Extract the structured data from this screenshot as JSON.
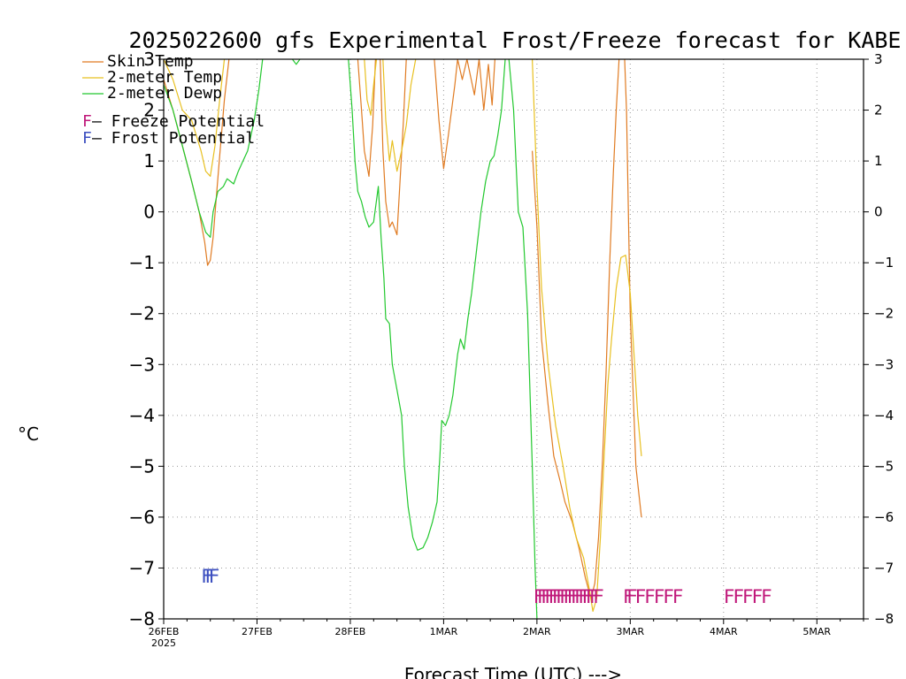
{
  "chart_data": {
    "type": "line",
    "title": "2025022600 gfs Experimental Frost/Freeze forecast for KABE",
    "xlabel": "Forecast Time (UTC) --->",
    "ylabel": "°C",
    "ylim": [
      -8,
      3
    ],
    "yticks": [
      -8,
      -7,
      -6,
      -5,
      -4,
      -3,
      -2,
      -1,
      0,
      1,
      2,
      3
    ],
    "xlim": [
      0,
      7.5
    ],
    "x_units": "days since 26FEB2025 00Z",
    "xticks": [
      {
        "x": 0,
        "label": "26FEB",
        "sublabel": "2025"
      },
      {
        "x": 1,
        "label": "27FEB"
      },
      {
        "x": 2,
        "label": "28FEB"
      },
      {
        "x": 3,
        "label": "1MAR"
      },
      {
        "x": 4,
        "label": "2MAR"
      },
      {
        "x": 5,
        "label": "3MAR"
      },
      {
        "x": 6,
        "label": "4MAR"
      },
      {
        "x": 7,
        "label": "5MAR"
      }
    ],
    "grid": true,
    "legend_position": "top-left",
    "legend_notes": [
      {
        "marker": "F",
        "text": " – Freeze Potential",
        "color": "#c0187a"
      },
      {
        "marker": "F",
        "text": " – Frost Potential",
        "color": "#3c4fc0"
      }
    ],
    "series": [
      {
        "name": "Skin Temp",
        "color": "#e07b22",
        "segments": [
          [
            [
              0,
              2.6
            ],
            [
              0.1,
              2.0
            ],
            [
              0.2,
              1.3
            ],
            [
              0.3,
              0.6
            ],
            [
              0.38,
              0.0
            ],
            [
              0.44,
              -0.6
            ],
            [
              0.47,
              -1.05
            ],
            [
              0.5,
              -0.95
            ],
            [
              0.53,
              -0.5
            ],
            [
              0.56,
              0.2
            ],
            [
              0.6,
              1.1
            ],
            [
              0.65,
              2.2
            ],
            [
              0.7,
              3.0
            ]
          ],
          [
            [
              2.08,
              3.0
            ],
            [
              2.12,
              2.0
            ],
            [
              2.15,
              1.2
            ],
            [
              2.2,
              0.7
            ],
            [
              2.24,
              1.7
            ],
            [
              2.27,
              3.0
            ]
          ],
          [
            [
              2.32,
              3.0
            ],
            [
              2.35,
              1.2
            ],
            [
              2.38,
              0.2
            ],
            [
              2.42,
              -0.3
            ],
            [
              2.45,
              -0.2
            ],
            [
              2.5,
              -0.45
            ],
            [
              2.53,
              0.5
            ],
            [
              2.57,
              1.8
            ],
            [
              2.6,
              3.0
            ]
          ],
          [
            [
              2.9,
              3.0
            ],
            [
              2.95,
              1.8
            ],
            [
              3.0,
              0.85
            ],
            [
              3.05,
              1.5
            ],
            [
              3.12,
              2.5
            ],
            [
              3.15,
              3.0
            ],
            [
              3.2,
              2.6
            ],
            [
              3.25,
              3.0
            ],
            [
              3.33,
              2.3
            ],
            [
              3.38,
              3.0
            ],
            [
              3.43,
              2.0
            ],
            [
              3.48,
              2.9
            ],
            [
              3.52,
              2.1
            ],
            [
              3.55,
              3.0
            ]
          ],
          [
            [
              3.95,
              1.2
            ],
            [
              4.0,
              -0.3
            ],
            [
              4.05,
              -2.5
            ],
            [
              4.12,
              -3.8
            ],
            [
              4.18,
              -4.8
            ],
            [
              4.25,
              -5.3
            ],
            [
              4.3,
              -5.7
            ],
            [
              4.38,
              -6.1
            ],
            [
              4.45,
              -6.6
            ],
            [
              4.52,
              -7.2
            ],
            [
              4.58,
              -7.6
            ],
            [
              4.62,
              -7.3
            ],
            [
              4.66,
              -6.4
            ],
            [
              4.7,
              -5.0
            ],
            [
              4.74,
              -3.2
            ],
            [
              4.78,
              -1.0
            ],
            [
              4.82,
              0.8
            ],
            [
              4.85,
              2.0
            ],
            [
              4.88,
              3.0
            ]
          ],
          [
            [
              4.94,
              3.0
            ],
            [
              4.96,
              2.0
            ],
            [
              4.98,
              0.0
            ],
            [
              5.0,
              -2.0
            ],
            [
              5.03,
              -3.5
            ],
            [
              5.06,
              -5.0
            ],
            [
              5.09,
              -5.5
            ],
            [
              5.12,
              -6.0
            ]
          ]
        ]
      },
      {
        "name": "2-meter Temp",
        "color": "#e8c020",
        "segments": [
          [
            [
              0,
              3.0
            ],
            [
              0.1,
              2.6
            ],
            [
              0.2,
              2.0
            ],
            [
              0.3,
              1.8
            ],
            [
              0.4,
              1.2
            ],
            [
              0.45,
              0.8
            ],
            [
              0.5,
              0.7
            ],
            [
              0.55,
              1.3
            ],
            [
              0.6,
              2.2
            ],
            [
              0.65,
              3.0
            ]
          ],
          [
            [
              2.15,
              3.0
            ],
            [
              2.18,
              2.2
            ],
            [
              2.22,
              1.9
            ],
            [
              2.25,
              2.5
            ],
            [
              2.28,
              3.0
            ]
          ],
          [
            [
              2.35,
              3.0
            ],
            [
              2.38,
              1.8
            ],
            [
              2.42,
              1.0
            ],
            [
              2.45,
              1.4
            ],
            [
              2.5,
              0.8
            ],
            [
              2.55,
              1.2
            ],
            [
              2.6,
              1.7
            ],
            [
              2.65,
              2.5
            ],
            [
              2.7,
              3.0
            ]
          ],
          [
            [
              3.95,
              3.0
            ],
            [
              4.0,
              0.5
            ],
            [
              4.05,
              -1.5
            ],
            [
              4.12,
              -3.0
            ],
            [
              4.2,
              -4.2
            ],
            [
              4.28,
              -5.0
            ],
            [
              4.35,
              -5.8
            ],
            [
              4.42,
              -6.4
            ],
            [
              4.5,
              -6.8
            ],
            [
              4.56,
              -7.4
            ],
            [
              4.6,
              -7.85
            ],
            [
              4.64,
              -7.6
            ],
            [
              4.68,
              -6.4
            ],
            [
              4.72,
              -4.8
            ],
            [
              4.76,
              -3.4
            ],
            [
              4.8,
              -2.5
            ],
            [
              4.85,
              -1.5
            ],
            [
              4.9,
              -0.9
            ],
            [
              4.95,
              -0.85
            ],
            [
              5.0,
              -1.6
            ],
            [
              5.04,
              -2.8
            ],
            [
              5.08,
              -4.0
            ],
            [
              5.12,
              -4.8
            ]
          ]
        ]
      },
      {
        "name": "2-meter Dewp",
        "color": "#22c82e",
        "segments": [
          [
            [
              0,
              2.5
            ],
            [
              0.1,
              2.0
            ],
            [
              0.2,
              1.3
            ],
            [
              0.3,
              0.6
            ],
            [
              0.38,
              0.0
            ],
            [
              0.45,
              -0.4
            ],
            [
              0.5,
              -0.5
            ],
            [
              0.53,
              0.0
            ],
            [
              0.58,
              0.4
            ],
            [
              0.64,
              0.5
            ],
            [
              0.68,
              0.65
            ],
            [
              0.75,
              0.55
            ],
            [
              0.8,
              0.8
            ],
            [
              0.85,
              1.0
            ],
            [
              0.9,
              1.2
            ],
            [
              0.97,
              1.8
            ],
            [
              1.02,
              2.4
            ],
            [
              1.06,
              3.0
            ]
          ],
          [
            [
              1.38,
              3.0
            ],
            [
              1.42,
              2.9
            ],
            [
              1.46,
              3.0
            ]
          ],
          [
            [
              1.98,
              3.0
            ],
            [
              2.02,
              2.0
            ],
            [
              2.05,
              1.0
            ],
            [
              2.08,
              0.4
            ],
            [
              2.12,
              0.2
            ],
            [
              2.16,
              -0.1
            ],
            [
              2.2,
              -0.3
            ],
            [
              2.25,
              -0.2
            ],
            [
              2.3,
              0.5
            ],
            [
              2.33,
              -0.5
            ],
            [
              2.36,
              -1.3
            ],
            [
              2.38,
              -2.1
            ],
            [
              2.42,
              -2.2
            ],
            [
              2.45,
              -3.0
            ],
            [
              2.5,
              -3.5
            ],
            [
              2.55,
              -4.0
            ],
            [
              2.58,
              -5.0
            ],
            [
              2.62,
              -5.8
            ],
            [
              2.67,
              -6.4
            ],
            [
              2.72,
              -6.65
            ],
            [
              2.78,
              -6.6
            ],
            [
              2.83,
              -6.4
            ],
            [
              2.88,
              -6.1
            ],
            [
              2.93,
              -5.7
            ],
            [
              2.96,
              -4.8
            ],
            [
              2.98,
              -4.1
            ],
            [
              3.02,
              -4.2
            ],
            [
              3.06,
              -4.0
            ],
            [
              3.1,
              -3.6
            ],
            [
              3.15,
              -2.8
            ],
            [
              3.18,
              -2.5
            ],
            [
              3.22,
              -2.7
            ],
            [
              3.26,
              -2.1
            ],
            [
              3.3,
              -1.6
            ],
            [
              3.35,
              -0.8
            ],
            [
              3.4,
              0.0
            ],
            [
              3.45,
              0.6
            ],
            [
              3.5,
              1.0
            ],
            [
              3.54,
              1.1
            ],
            [
              3.58,
              1.5
            ],
            [
              3.62,
              2.0
            ],
            [
              3.66,
              3.0
            ]
          ],
          [
            [
              3.7,
              3.0
            ],
            [
              3.75,
              2.0
            ],
            [
              3.8,
              0.0
            ],
            [
              3.85,
              -0.3
            ],
            [
              3.9,
              -2.0
            ],
            [
              3.95,
              -5.0
            ],
            [
              3.98,
              -7.0
            ],
            [
              4.0,
              -8.0
            ]
          ]
        ]
      }
    ],
    "markers": [
      {
        "label": "F",
        "color": "#3c4fc0",
        "y": -7.15,
        "x": [
          0.4,
          0.44,
          0.48
        ]
      },
      {
        "label": "F",
        "color": "#c0187a",
        "y": -7.55,
        "x": [
          3.96,
          4.0,
          4.04,
          4.08,
          4.12,
          4.16,
          4.2,
          4.24,
          4.28,
          4.32,
          4.36,
          4.4,
          4.44,
          4.48,
          4.52,
          4.56,
          4.6
        ]
      },
      {
        "label": "F",
        "color": "#c0187a",
        "y": -7.55,
        "x": [
          4.92,
          4.96,
          5.05,
          5.15,
          5.25,
          5.35,
          5.45
        ]
      },
      {
        "label": "F",
        "color": "#c0187a",
        "y": -7.55,
        "x": [
          6.0,
          6.1,
          6.2,
          6.3,
          6.4
        ]
      }
    ]
  }
}
